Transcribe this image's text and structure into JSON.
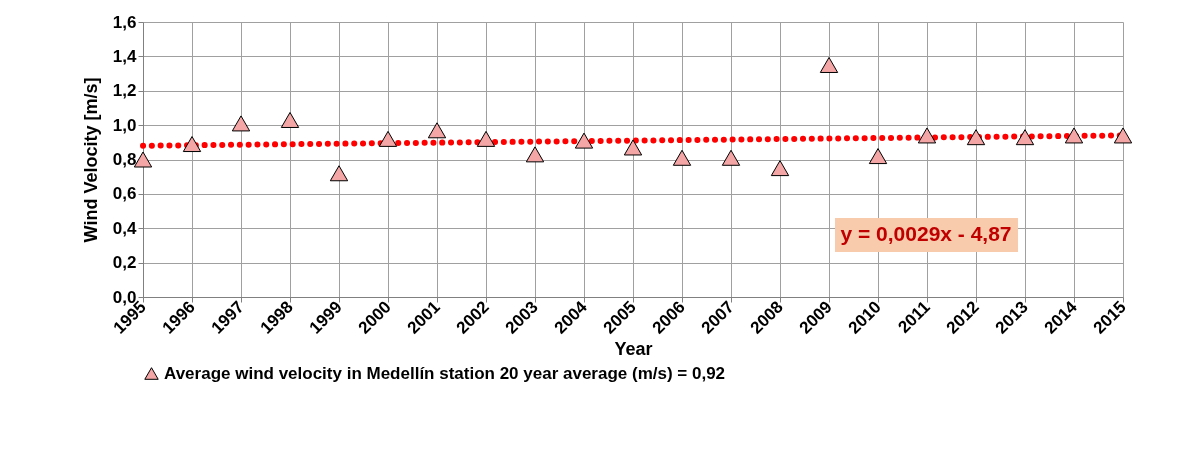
{
  "chart_data": {
    "type": "scatter",
    "xlabel": "Year",
    "ylabel": "Wind Velocity [m/s]",
    "x": [
      1995,
      1996,
      1997,
      1998,
      1999,
      2000,
      2001,
      2002,
      2003,
      2004,
      2005,
      2006,
      2007,
      2008,
      2009,
      2010,
      2011,
      2012,
      2013,
      2014,
      2015
    ],
    "series": [
      {
        "name": "Average wind velocity in Medellín station   20 year average (m/s) =  0,92",
        "type": "scatter",
        "color": "#f4a6a6",
        "values": [
          0.8,
          0.89,
          1.01,
          1.03,
          0.72,
          0.92,
          0.97,
          0.92,
          0.83,
          0.91,
          0.87,
          0.81,
          0.81,
          0.75,
          1.35,
          0.82,
          0.94,
          0.93,
          0.93,
          0.94,
          0.94
        ]
      },
      {
        "type": "line",
        "color": "#ff0000",
        "line_style": "dotted",
        "marker": "none",
        "x": [
          1995,
          2015
        ],
        "values": [
          0.88,
          0.94
        ]
      }
    ],
    "xlim": [
      1995,
      2015
    ],
    "xticks": [
      1995,
      1996,
      1997,
      1998,
      1999,
      2000,
      2001,
      2002,
      2003,
      2004,
      2005,
      2006,
      2007,
      2008,
      2009,
      2010,
      2011,
      2012,
      2013,
      2014,
      2015
    ],
    "ylim": [
      0,
      1.6
    ],
    "yticks": [
      {
        "value": 0,
        "label": "0,0"
      },
      {
        "value": 0.2,
        "label": "0,2"
      },
      {
        "value": 0.4,
        "label": "0,4"
      },
      {
        "value": 0.6,
        "label": "0,6"
      },
      {
        "value": 0.8,
        "label": "0,8"
      },
      {
        "value": 1,
        "label": "1,0"
      },
      {
        "value": 1.2,
        "label": "1,2"
      },
      {
        "value": 1.4,
        "label": "1,4"
      },
      {
        "value": 1.6,
        "label": "1,6"
      }
    ],
    "annotations": [
      "y = 0,0029x - 4,87"
    ],
    "grid": true,
    "legend": "bottom",
    "marker": "triangle"
  }
}
